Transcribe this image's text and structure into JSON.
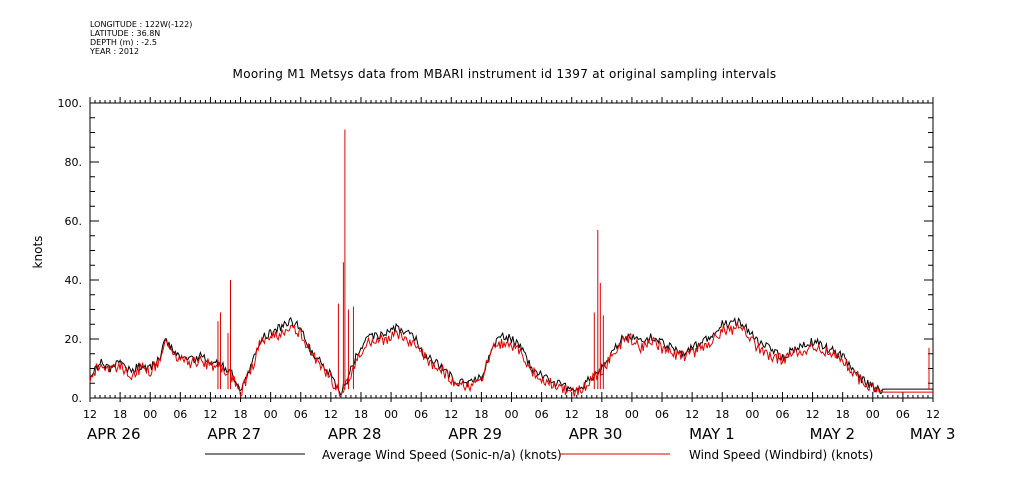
{
  "meta": {
    "longitude": "LONGITUDE : 122W(-122)",
    "latitude": "LATITUDE : 36.8N",
    "depth": "DEPTH (m) : -2.5",
    "year": "YEAR : 2012"
  },
  "chart_data": {
    "type": "line",
    "title": "Mooring M1 Metsys data from MBARI instrument id 1397 at original sampling intervals",
    "ylabel": "knots",
    "xlabel": "",
    "ylim": [
      0,
      100
    ],
    "xlim_hours": [
      0,
      168
    ],
    "y_ticks": [
      {
        "v": 0,
        "label": "0."
      },
      {
        "v": 20,
        "label": "20."
      },
      {
        "v": 40,
        "label": "40."
      },
      {
        "v": 60,
        "label": "60."
      },
      {
        "v": 80,
        "label": "80."
      },
      {
        "v": 100,
        "label": "100."
      }
    ],
    "x_hour_ticks": [
      "12",
      "18",
      "00",
      "06",
      "12",
      "18",
      "00",
      "06",
      "12",
      "18",
      "00",
      "06",
      "12",
      "18",
      "00",
      "06",
      "12",
      "18",
      "00",
      "06",
      "12",
      "18",
      "00",
      "06",
      "12",
      "18",
      "00",
      "06",
      "12"
    ],
    "x_date_labels": [
      {
        "h": 0,
        "label": "APR 26"
      },
      {
        "h": 24,
        "label": "APR 27"
      },
      {
        "h": 48,
        "label": "APR 28"
      },
      {
        "h": 72,
        "label": "APR 29"
      },
      {
        "h": 96,
        "label": "APR 30"
      },
      {
        "h": 120,
        "label": "MAY  1"
      },
      {
        "h": 144,
        "label": "MAY  2"
      },
      {
        "h": 164,
        "label": "MAY  3"
      }
    ],
    "grid": false,
    "legend": "bottom",
    "series": [
      {
        "name": "Average Wind Speed (Sonic-n/a) (knots)",
        "color": "#000000",
        "points": [
          [
            0,
            8
          ],
          [
            2,
            12
          ],
          [
            4,
            10
          ],
          [
            6,
            12
          ],
          [
            8,
            9
          ],
          [
            10,
            11
          ],
          [
            12,
            10
          ],
          [
            14,
            14
          ],
          [
            15,
            20
          ],
          [
            16,
            17
          ],
          [
            18,
            14
          ],
          [
            20,
            13
          ],
          [
            22,
            14
          ],
          [
            24,
            12
          ],
          [
            26,
            11
          ],
          [
            28,
            9
          ],
          [
            29,
            6
          ],
          [
            30,
            3
          ],
          [
            32,
            10
          ],
          [
            34,
            20
          ],
          [
            36,
            22
          ],
          [
            38,
            24
          ],
          [
            40,
            26
          ],
          [
            42,
            24
          ],
          [
            44,
            16
          ],
          [
            46,
            12
          ],
          [
            48,
            8
          ],
          [
            49,
            4
          ],
          [
            50,
            2
          ],
          [
            51,
            5
          ],
          [
            53,
            14
          ],
          [
            55,
            20
          ],
          [
            57,
            21
          ],
          [
            59,
            22
          ],
          [
            61,
            24
          ],
          [
            63,
            22
          ],
          [
            65,
            20
          ],
          [
            66,
            16
          ],
          [
            68,
            13
          ],
          [
            70,
            11
          ],
          [
            72,
            7
          ],
          [
            74,
            5
          ],
          [
            76,
            5
          ],
          [
            78,
            7
          ],
          [
            80,
            17
          ],
          [
            82,
            21
          ],
          [
            84,
            20
          ],
          [
            86,
            17
          ],
          [
            88,
            10
          ],
          [
            90,
            8
          ],
          [
            92,
            6
          ],
          [
            94,
            4
          ],
          [
            96,
            3
          ],
          [
            98,
            4
          ],
          [
            100,
            7
          ],
          [
            102,
            10
          ],
          [
            104,
            15
          ],
          [
            106,
            20
          ],
          [
            108,
            21
          ],
          [
            110,
            19
          ],
          [
            112,
            21
          ],
          [
            114,
            19
          ],
          [
            116,
            17
          ],
          [
            118,
            15
          ],
          [
            120,
            17
          ],
          [
            122,
            19
          ],
          [
            124,
            21
          ],
          [
            126,
            25
          ],
          [
            128,
            25
          ],
          [
            129,
            26
          ],
          [
            130,
            25
          ],
          [
            132,
            21
          ],
          [
            134,
            18
          ],
          [
            136,
            16
          ],
          [
            138,
            14
          ],
          [
            140,
            16
          ],
          [
            142,
            18
          ],
          [
            144,
            19
          ],
          [
            146,
            18
          ],
          [
            148,
            16
          ],
          [
            150,
            14
          ],
          [
            152,
            10
          ],
          [
            154,
            6
          ],
          [
            156,
            4
          ],
          [
            157,
            3
          ],
          [
            158,
            3
          ],
          [
            168,
            3
          ]
        ]
      },
      {
        "name": "Wind Speed (Windbird) (knots)",
        "color": "#dd0000",
        "points": [
          [
            0,
            7
          ],
          [
            2,
            11
          ],
          [
            4,
            9
          ],
          [
            6,
            11
          ],
          [
            8,
            8
          ],
          [
            10,
            10
          ],
          [
            12,
            9
          ],
          [
            14,
            13
          ],
          [
            15,
            19
          ],
          [
            16,
            16
          ],
          [
            18,
            13
          ],
          [
            20,
            12
          ],
          [
            22,
            13
          ],
          [
            24,
            11
          ],
          [
            26,
            10
          ],
          [
            28,
            8
          ],
          [
            29,
            5
          ],
          [
            30,
            2
          ],
          [
            32,
            9
          ],
          [
            34,
            19
          ],
          [
            36,
            21
          ],
          [
            38,
            22
          ],
          [
            40,
            23
          ],
          [
            42,
            22
          ],
          [
            44,
            15
          ],
          [
            46,
            11
          ],
          [
            48,
            7
          ],
          [
            49,
            3
          ],
          [
            50,
            1
          ],
          [
            51,
            4
          ],
          [
            53,
            13
          ],
          [
            55,
            19
          ],
          [
            57,
            20
          ],
          [
            59,
            20
          ],
          [
            61,
            22
          ],
          [
            63,
            20
          ],
          [
            65,
            18
          ],
          [
            66,
            15
          ],
          [
            68,
            12
          ],
          [
            70,
            10
          ],
          [
            72,
            6
          ],
          [
            74,
            4
          ],
          [
            76,
            4
          ],
          [
            78,
            6
          ],
          [
            80,
            16
          ],
          [
            82,
            19
          ],
          [
            84,
            18
          ],
          [
            86,
            15
          ],
          [
            88,
            9
          ],
          [
            90,
            7
          ],
          [
            92,
            5
          ],
          [
            94,
            3
          ],
          [
            96,
            2
          ],
          [
            98,
            3
          ],
          [
            100,
            6
          ],
          [
            102,
            9
          ],
          [
            104,
            14
          ],
          [
            106,
            19
          ],
          [
            108,
            20
          ],
          [
            110,
            17
          ],
          [
            112,
            19
          ],
          [
            114,
            17
          ],
          [
            116,
            15
          ],
          [
            118,
            14
          ],
          [
            120,
            15
          ],
          [
            122,
            17
          ],
          [
            124,
            19
          ],
          [
            126,
            23
          ],
          [
            128,
            23
          ],
          [
            129,
            25
          ],
          [
            130,
            23
          ],
          [
            132,
            19
          ],
          [
            134,
            16
          ],
          [
            136,
            14
          ],
          [
            138,
            13
          ],
          [
            140,
            15
          ],
          [
            142,
            16
          ],
          [
            144,
            17
          ],
          [
            146,
            16
          ],
          [
            148,
            15
          ],
          [
            150,
            13
          ],
          [
            152,
            9
          ],
          [
            154,
            5
          ],
          [
            156,
            3
          ],
          [
            157,
            2
          ],
          [
            158,
            2
          ],
          [
            168,
            2
          ]
        ],
        "spikes": [
          [
            25.5,
            26
          ],
          [
            26,
            29
          ],
          [
            27.5,
            22
          ],
          [
            28,
            40
          ],
          [
            49.5,
            32
          ],
          [
            50.5,
            46
          ],
          [
            50.8,
            91
          ],
          [
            51.5,
            30
          ],
          [
            52.5,
            31
          ],
          [
            100.5,
            29
          ],
          [
            101.2,
            57
          ],
          [
            101.7,
            39
          ],
          [
            102.3,
            28
          ],
          [
            167.2,
            17
          ]
        ]
      }
    ]
  }
}
